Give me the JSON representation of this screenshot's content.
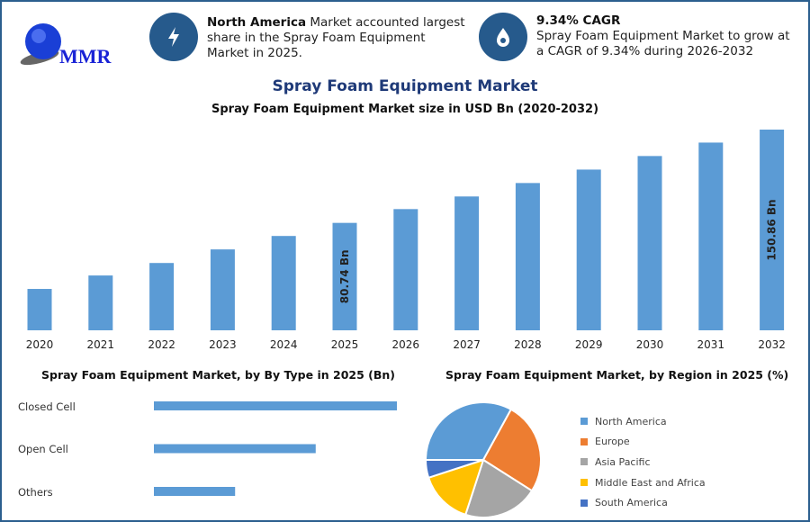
{
  "logo": {
    "text": "MMR"
  },
  "info1": {
    "bold": "North America",
    "text": " Market accounted largest share in the Spray Foam Equipment Market in 2025.",
    "icon": "lightning-icon"
  },
  "info2": {
    "bold": "9.34% CAGR",
    "text": "Spray Foam Equipment Market to grow at a CAGR of 9.34% during 2026-2032",
    "icon": "droplet-icon"
  },
  "colors": {
    "bar": "#5b9bd5",
    "title": "#1f3a78",
    "icon_bg": "#265a8c"
  },
  "chart_data": [
    {
      "type": "bar",
      "title": "Spray Foam Equipment Market",
      "subtitle": "Spray Foam Equipment Market size in USD Bn (2020-2032)",
      "categories": [
        "2020",
        "2021",
        "2022",
        "2023",
        "2024",
        "2025",
        "2026",
        "2027",
        "2028",
        "2029",
        "2030",
        "2031",
        "2032"
      ],
      "values": [
        31.1,
        41.2,
        50.6,
        60.8,
        70.9,
        80.74,
        91.1,
        100.6,
        110.7,
        120.8,
        131.0,
        141.1,
        150.86
      ],
      "data_labels": {
        "5": "80.74 Bn",
        "12": "150.86 Bn"
      },
      "ylim": [
        0,
        155
      ],
      "grid": false
    },
    {
      "type": "bar",
      "orientation": "horizontal",
      "title": "Spray Foam Equipment Market, by By Type in 2025 (Bn)",
      "categories": [
        "Closed Cell",
        "Open Cell",
        "Others"
      ],
      "values": [
        40.4,
        26.9,
        13.5
      ]
    },
    {
      "type": "pie",
      "title": "Spray Foam Equipment Market, by Region in 2025 (%)",
      "categories": [
        "North America",
        "Europe",
        "Asia Pacific",
        "Middle East and Africa",
        "South America"
      ],
      "values": [
        33,
        26,
        21,
        15,
        5
      ],
      "colors": [
        "#5b9bd5",
        "#ed7d31",
        "#a5a5a5",
        "#ffc000",
        "#4472c4"
      ],
      "legend": "right"
    }
  ]
}
